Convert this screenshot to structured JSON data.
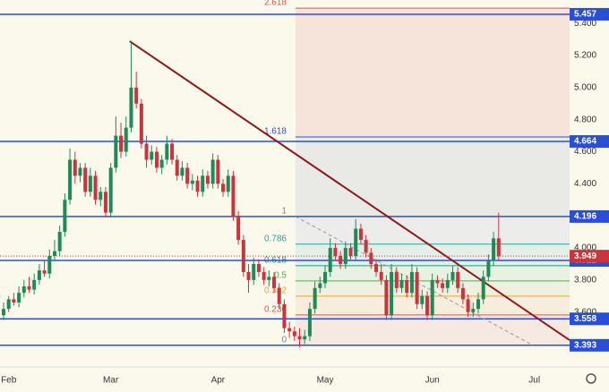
{
  "chart_data": {
    "type": "candlestick",
    "up_color": "#1f8a57",
    "down_color": "#c9343d",
    "xlim": [
      -0.7,
      110.9
    ],
    "xticks": [
      {
        "value": 1,
        "label": "Feb"
      },
      {
        "value": 21,
        "label": "Mar"
      },
      {
        "value": 42,
        "label": "Apr"
      },
      {
        "value": 63,
        "label": "May"
      },
      {
        "value": 84,
        "label": "Jun"
      },
      {
        "value": 104,
        "label": "Jul"
      }
    ],
    "ylim": [
      3.258,
      5.546
    ],
    "yticks": [
      {
        "value": 5.4,
        "label": "5.400"
      },
      {
        "value": 5.2,
        "label": "5.200"
      },
      {
        "value": 5.0,
        "label": "5.000"
      },
      {
        "value": 4.8,
        "label": "4.800"
      },
      {
        "value": 4.6,
        "label": "4.600"
      },
      {
        "value": 4.4,
        "label": "4.400"
      },
      {
        "value": 4.0,
        "label": "4.000"
      },
      {
        "value": 3.8,
        "label": "3.800"
      },
      {
        "value": 3.6,
        "label": "3.600"
      }
    ],
    "candles": [
      [
        3.58,
        3.66,
        3.55,
        3.62
      ],
      [
        3.62,
        3.7,
        3.6,
        3.68
      ],
      [
        3.68,
        3.72,
        3.64,
        3.66
      ],
      [
        3.66,
        3.76,
        3.63,
        3.72
      ],
      [
        3.72,
        3.8,
        3.69,
        3.76
      ],
      [
        3.76,
        3.82,
        3.72,
        3.74
      ],
      [
        3.74,
        3.84,
        3.71,
        3.8
      ],
      [
        3.8,
        3.9,
        3.77,
        3.86
      ],
      [
        3.86,
        3.92,
        3.82,
        3.84
      ],
      [
        3.84,
        3.99,
        3.81,
        3.95
      ],
      [
        3.95,
        4.05,
        3.92,
        3.98
      ],
      [
        3.98,
        4.14,
        3.95,
        4.1
      ],
      [
        4.1,
        4.34,
        4.07,
        4.3
      ],
      [
        4.3,
        4.62,
        4.27,
        4.55
      ],
      [
        4.55,
        4.6,
        4.4,
        4.45
      ],
      [
        4.45,
        4.53,
        4.41,
        4.5
      ],
      [
        4.5,
        4.53,
        4.32,
        4.35
      ],
      [
        4.35,
        4.5,
        4.32,
        4.45
      ],
      [
        4.45,
        4.48,
        4.27,
        4.3
      ],
      [
        4.3,
        4.38,
        4.26,
        4.35
      ],
      [
        4.35,
        4.38,
        4.19,
        4.22
      ],
      [
        4.22,
        4.53,
        4.19,
        4.5
      ],
      [
        4.5,
        4.82,
        4.47,
        4.7
      ],
      [
        4.7,
        4.78,
        4.56,
        4.6
      ],
      [
        4.6,
        4.82,
        4.57,
        4.75
      ],
      [
        4.75,
        5.28,
        4.72,
        5.0
      ],
      [
        5.0,
        5.1,
        4.87,
        4.9
      ],
      [
        4.9,
        4.93,
        4.62,
        4.65
      ],
      [
        4.65,
        4.7,
        4.5,
        4.55
      ],
      [
        4.55,
        4.64,
        4.52,
        4.6
      ],
      [
        4.6,
        4.63,
        4.47,
        4.5
      ],
      [
        4.5,
        4.58,
        4.46,
        4.55
      ],
      [
        4.55,
        4.7,
        4.52,
        4.65
      ],
      [
        4.65,
        4.68,
        4.52,
        4.55
      ],
      [
        4.55,
        4.58,
        4.42,
        4.45
      ],
      [
        4.45,
        4.54,
        4.42,
        4.5
      ],
      [
        4.5,
        4.53,
        4.37,
        4.4
      ],
      [
        4.4,
        4.46,
        4.36,
        4.42
      ],
      [
        4.42,
        4.45,
        4.32,
        4.35
      ],
      [
        4.35,
        4.49,
        4.32,
        4.45
      ],
      [
        4.45,
        4.48,
        4.37,
        4.4
      ],
      [
        4.4,
        4.59,
        4.37,
        4.55
      ],
      [
        4.55,
        4.58,
        4.37,
        4.4
      ],
      [
        4.4,
        4.43,
        4.32,
        4.35
      ],
      [
        4.35,
        4.49,
        4.32,
        4.45
      ],
      [
        4.45,
        4.48,
        4.17,
        4.2
      ],
      [
        4.2,
        4.23,
        4.02,
        4.05
      ],
      [
        4.05,
        4.08,
        3.82,
        3.85
      ],
      [
        3.85,
        3.9,
        3.72,
        3.8
      ],
      [
        3.8,
        3.94,
        3.77,
        3.9
      ],
      [
        3.9,
        3.93,
        3.82,
        3.85
      ],
      [
        3.85,
        3.88,
        3.77,
        3.8
      ],
      [
        3.8,
        3.86,
        3.76,
        3.82
      ],
      [
        3.82,
        3.85,
        3.72,
        3.75
      ],
      [
        3.75,
        3.78,
        3.62,
        3.65
      ],
      [
        3.65,
        3.68,
        3.47,
        3.5
      ],
      [
        3.5,
        3.54,
        3.44,
        3.48
      ],
      [
        3.48,
        3.51,
        3.42,
        3.45
      ],
      [
        3.45,
        3.5,
        3.38,
        3.43
      ],
      [
        3.43,
        3.49,
        3.4,
        3.45
      ],
      [
        3.45,
        3.66,
        3.42,
        3.62
      ],
      [
        3.62,
        3.79,
        3.59,
        3.75
      ],
      [
        3.75,
        3.82,
        3.72,
        3.78
      ],
      [
        3.78,
        3.89,
        3.75,
        3.85
      ],
      [
        3.85,
        4.06,
        3.82,
        4.0
      ],
      [
        4.0,
        4.03,
        3.92,
        3.95
      ],
      [
        3.95,
        3.98,
        3.87,
        3.9
      ],
      [
        3.9,
        4.04,
        3.87,
        4.0
      ],
      [
        4.0,
        4.03,
        3.92,
        3.95
      ],
      [
        3.95,
        4.18,
        3.92,
        4.12
      ],
      [
        4.12,
        4.15,
        4.02,
        4.05
      ],
      [
        4.05,
        4.08,
        3.94,
        3.97
      ],
      [
        3.97,
        4.0,
        3.87,
        3.9
      ],
      [
        3.9,
        3.93,
        3.82,
        3.85
      ],
      [
        3.85,
        3.9,
        3.77,
        3.8
      ],
      [
        3.8,
        3.83,
        3.55,
        3.58
      ],
      [
        3.58,
        3.9,
        3.55,
        3.85
      ],
      [
        3.85,
        3.88,
        3.72,
        3.75
      ],
      [
        3.75,
        3.84,
        3.72,
        3.8
      ],
      [
        3.8,
        3.83,
        3.69,
        3.72
      ],
      [
        3.72,
        3.9,
        3.69,
        3.85
      ],
      [
        3.85,
        3.88,
        3.62,
        3.65
      ],
      [
        3.65,
        3.74,
        3.62,
        3.7
      ],
      [
        3.7,
        3.73,
        3.55,
        3.58
      ],
      [
        3.58,
        3.84,
        3.55,
        3.8
      ],
      [
        3.8,
        3.83,
        3.75,
        3.78
      ],
      [
        3.78,
        3.81,
        3.72,
        3.75
      ],
      [
        3.75,
        3.84,
        3.72,
        3.8
      ],
      [
        3.8,
        3.89,
        3.77,
        3.85
      ],
      [
        3.85,
        3.88,
        3.72,
        3.75
      ],
      [
        3.75,
        3.78,
        3.65,
        3.68
      ],
      [
        3.68,
        3.71,
        3.57,
        3.6
      ],
      [
        3.6,
        3.66,
        3.57,
        3.62
      ],
      [
        3.62,
        3.72,
        3.59,
        3.68
      ],
      [
        3.68,
        3.86,
        3.65,
        3.82
      ],
      [
        3.82,
        3.96,
        3.79,
        3.92
      ],
      [
        3.92,
        4.1,
        3.89,
        4.06
      ],
      [
        4.06,
        4.22,
        3.92,
        3.949
      ]
    ],
    "levels": [
      {
        "value": 5.457,
        "color": "#2a4fd6"
      },
      {
        "value": 4.664,
        "color": "#2a4fd6"
      },
      {
        "value": 4.196,
        "color": "#2a4fd6"
      },
      {
        "value": 3.922,
        "color": "#2a4fd6"
      },
      {
        "value": 3.558,
        "color": "#2a4fd6"
      },
      {
        "value": 3.393,
        "color": "#2a4fd6"
      }
    ],
    "fib": {
      "x": 57.2,
      "from": 3.393,
      "to": 4.196,
      "levels": [
        {
          "ratio": 0,
          "color": "#888888",
          "fill": "#f6e9e2"
        },
        {
          "ratio": 0.236,
          "color": "#d9534f",
          "fill": "#f8ecdc"
        },
        {
          "ratio": 0.382,
          "color": "#f0a030",
          "fill": "#eef1df"
        },
        {
          "ratio": 0.5,
          "color": "#4caf50",
          "fill": "#e8f1e2"
        },
        {
          "ratio": 0.618,
          "color": "#1b9e77",
          "fill": "#e4efe8"
        },
        {
          "ratio": 0.786,
          "color": "#26a69a",
          "fill": "#ececea"
        },
        {
          "ratio": 1,
          "color": "#888888",
          "fill": "#e9e9e6"
        },
        {
          "ratio": 1.618,
          "color": "#2a4fd6",
          "fill": "#f6e4da"
        },
        {
          "ratio": 2.618,
          "color": "#d9534f"
        }
      ]
    },
    "trendline": {
      "x": [
        24.7,
        110.9
      ],
      "y": [
        5.289,
        3.425
      ],
      "color": "#8b1a1a"
    },
    "dashed_line": {
      "x": [
        57.2,
        103.7
      ],
      "y": [
        4.196,
        3.393
      ],
      "color": "#999999"
    }
  }
}
